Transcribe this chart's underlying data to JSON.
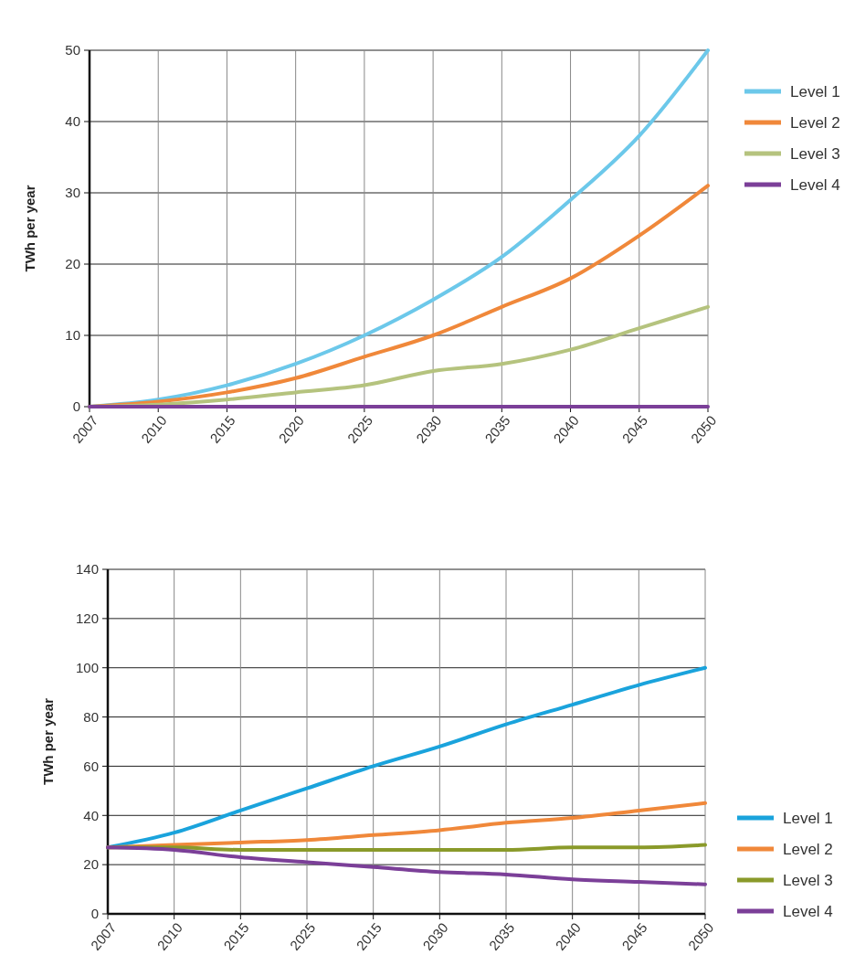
{
  "chart_data": [
    {
      "type": "line",
      "ylabel": "TWh per year",
      "categories": [
        "2007",
        "2010",
        "2015",
        "2020",
        "2025",
        "2030",
        "2035",
        "2040",
        "2045",
        "2050"
      ],
      "ylim": [
        0,
        50
      ],
      "yticks": [
        0,
        10,
        20,
        30,
        40,
        50
      ],
      "grid": true,
      "legend": "right",
      "line_style": "solid",
      "marker": "none",
      "series": [
        {
          "name": "Level 1",
          "color": "#6cc8ea",
          "values": [
            0,
            1,
            3,
            6,
            10,
            15,
            21,
            29,
            38,
            50
          ]
        },
        {
          "name": "Level 2",
          "color": "#f0883a",
          "values": [
            0,
            0.7,
            2,
            4,
            7,
            10,
            14,
            18,
            24,
            31
          ]
        },
        {
          "name": "Level 3",
          "color": "#b5c37e",
          "values": [
            0,
            0.3,
            1,
            2,
            3,
            5,
            6,
            8,
            11,
            14
          ]
        },
        {
          "name": "Level 4",
          "color": "#7b3f98",
          "values": [
            0,
            0,
            0,
            0,
            0,
            0,
            0,
            0,
            0,
            0
          ]
        }
      ]
    },
    {
      "type": "line",
      "ylabel": "TWh per year",
      "categories": [
        "2007",
        "2010",
        "2015",
        "2025",
        "2015",
        "2030",
        "2035",
        "2040",
        "2045",
        "2050"
      ],
      "ylim": [
        0,
        140
      ],
      "yticks": [
        0,
        20,
        40,
        60,
        80,
        100,
        120,
        140
      ],
      "grid": true,
      "legend": "bottom right",
      "line_style": "solid",
      "marker": "none",
      "series": [
        {
          "name": "Level 1",
          "color": "#1aa3dc",
          "values": [
            27,
            33,
            42,
            51,
            60,
            68,
            77,
            85,
            93,
            100
          ]
        },
        {
          "name": "Level 2",
          "color": "#f0883a",
          "values": [
            27,
            28,
            29,
            30,
            32,
            34,
            37,
            39,
            42,
            45
          ]
        },
        {
          "name": "Level 3",
          "color": "#8a9a2a",
          "values": [
            27,
            27,
            26,
            26,
            26,
            26,
            26,
            27,
            27,
            28
          ]
        },
        {
          "name": "Level 4",
          "color": "#7b3f98",
          "values": [
            27,
            26,
            23,
            21,
            19,
            17,
            16,
            14,
            13,
            12
          ]
        }
      ]
    }
  ]
}
